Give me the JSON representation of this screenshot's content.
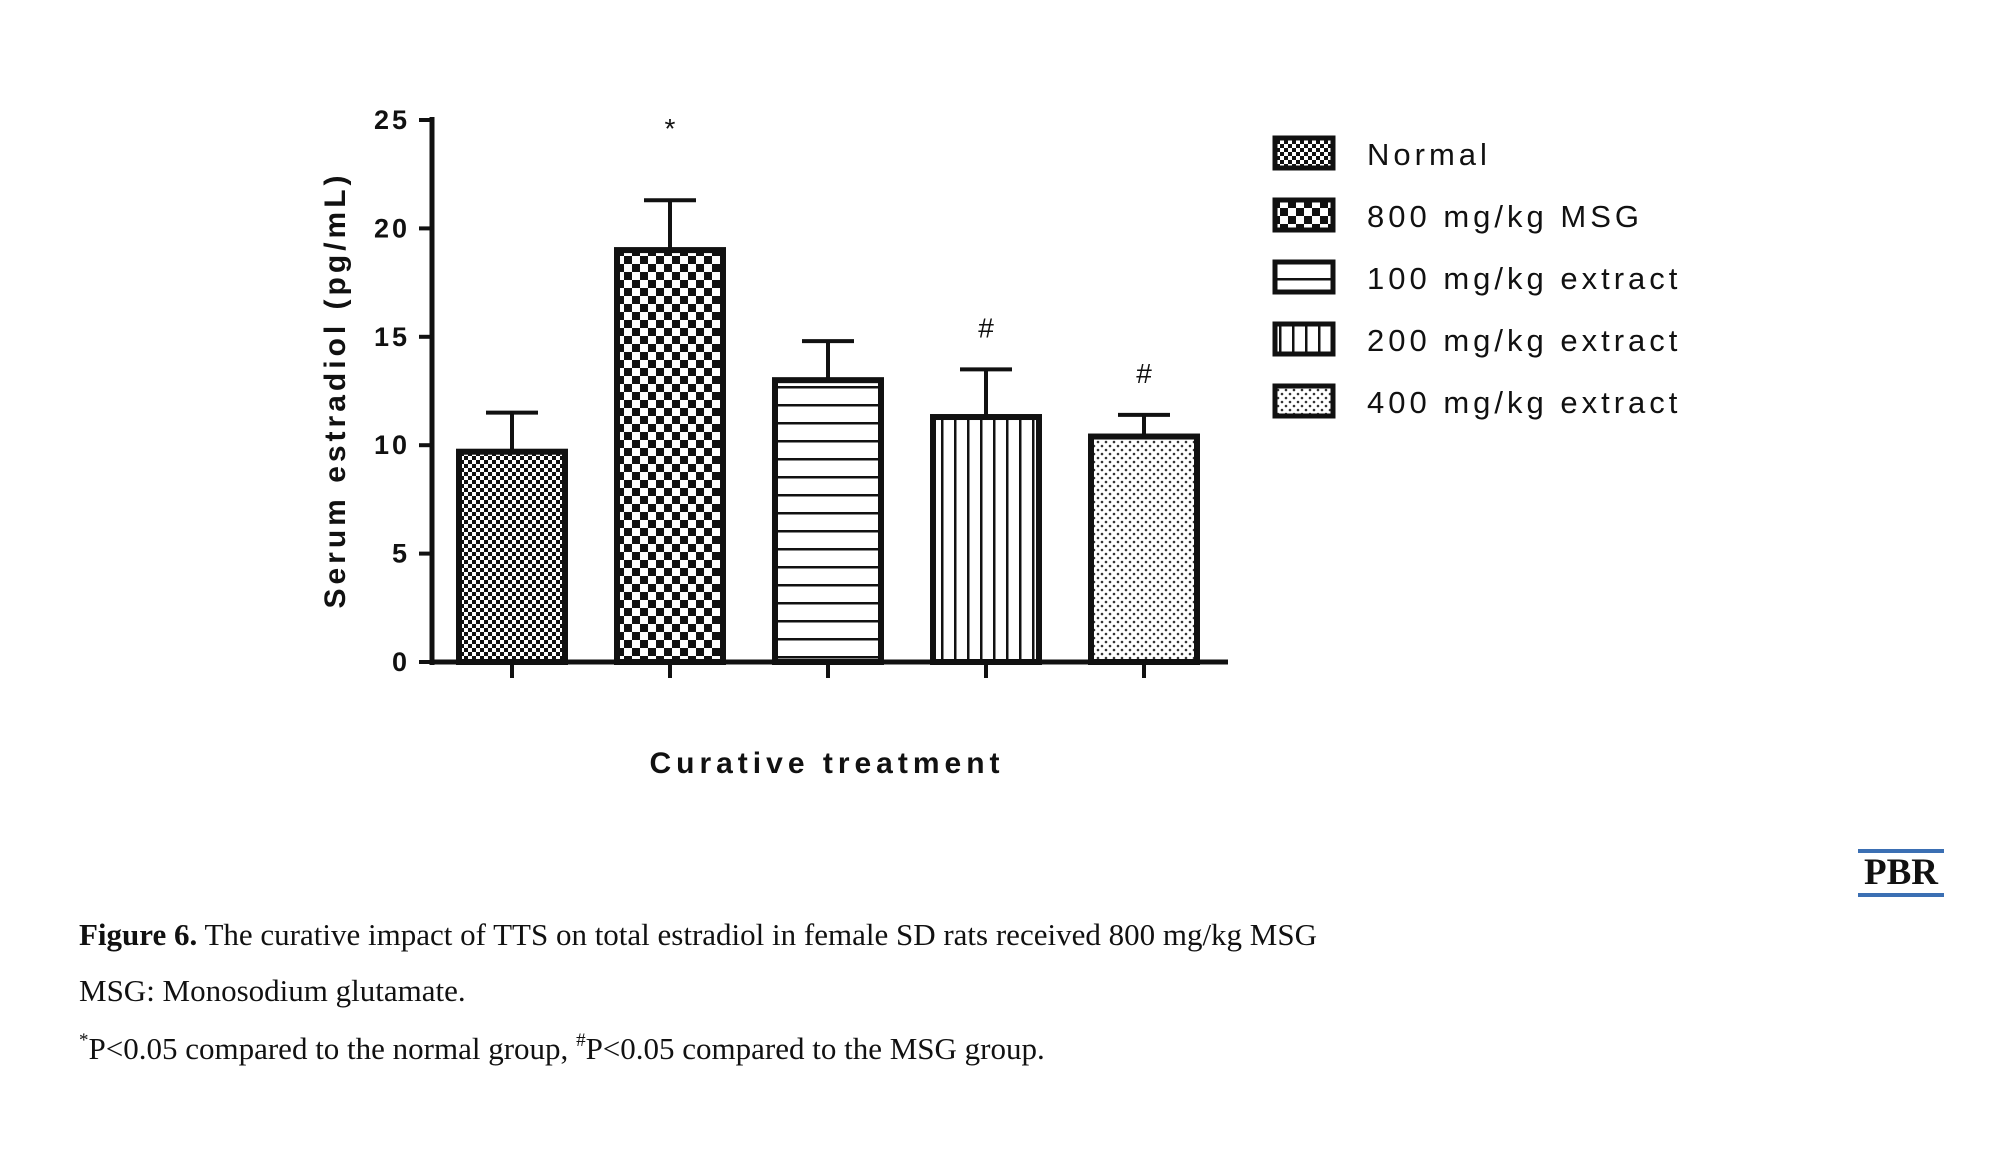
{
  "chart_data": {
    "type": "bar",
    "title": "",
    "xlabel": "Curative treatment",
    "ylabel": "Serum estradiol (pg/mL)",
    "ylim": [
      0,
      25
    ],
    "yticks": [
      "0",
      "5",
      "10",
      "15",
      "20",
      "25"
    ],
    "categories": [
      "Normal",
      "800 mg/kg MSG",
      "100 mg/kg extract",
      "200 mg/kg extract",
      "400 mg/kg extract"
    ],
    "values": [
      9.7,
      19.0,
      13.0,
      11.3,
      10.4
    ],
    "error_upper": [
      11.5,
      21.3,
      14.8,
      13.5,
      11.4
    ],
    "annotations": [
      "",
      "*",
      "",
      "#",
      "#"
    ],
    "patterns": [
      "fine-checker",
      "coarse-checker",
      "horizontal-lines",
      "vertical-lines",
      "dots"
    ],
    "legend": {
      "placement": "right",
      "entries": [
        "Normal",
        "800 mg/kg MSG",
        "100 mg/kg extract",
        "200 mg/kg extract",
        "400 mg/kg extract"
      ]
    },
    "grid": false,
    "colors": {
      "bar_stroke": "#111111",
      "fill": "#111111",
      "background": "#ffffff"
    }
  },
  "caption": {
    "figure_label": "Figure 6.",
    "figure_text": " The curative impact of TTS on total estradiol in female SD rats received 800 mg/kg MSG",
    "abbrev_line": "MSG: Monosodium glutamate.",
    "note_star": "*",
    "note_part1": "P<0.05 compared to the normal group, ",
    "note_hash": "#",
    "note_part2": "P<0.05 compared to the MSG group."
  },
  "logo": {
    "text": "PBR",
    "accent_color": "#3b6fb3"
  }
}
